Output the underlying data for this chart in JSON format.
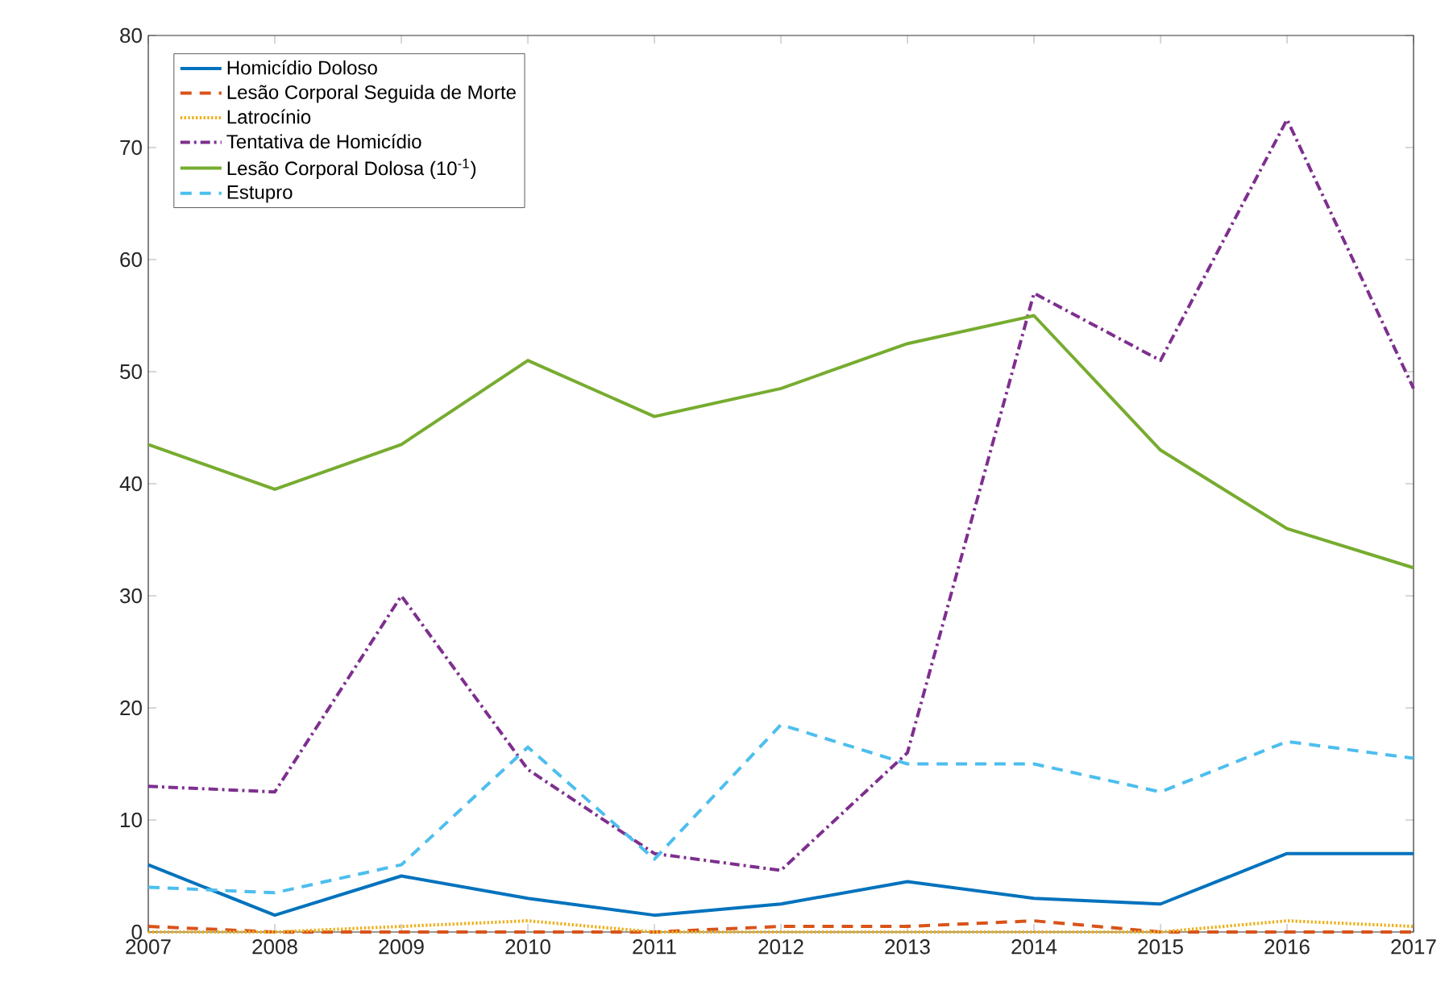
{
  "chart_data": {
    "type": "line",
    "x": [
      2007,
      2008,
      2009,
      2010,
      2011,
      2012,
      2013,
      2014,
      2015,
      2016,
      2017
    ],
    "series": [
      {
        "name": "Homicídio Doloso",
        "color": "#0072bd",
        "line_style": "solid",
        "values": [
          6,
          1.5,
          5,
          3,
          1.5,
          2.5,
          4.5,
          3,
          2.5,
          7,
          7
        ]
      },
      {
        "name": "Lesão Corporal Seguida de Morte",
        "color": "#d95319",
        "line_style": "dashed",
        "values": [
          0.5,
          0,
          0,
          0,
          0,
          0.5,
          0.5,
          1,
          0,
          0,
          0
        ]
      },
      {
        "name": "Latrocínio",
        "color": "#edb120",
        "line_style": "dotted",
        "values": [
          0,
          0,
          0.5,
          1,
          0,
          0,
          0,
          0,
          0,
          1,
          0.5
        ]
      },
      {
        "name": "Tentativa de Homicídio",
        "color": "#7e2f8e",
        "line_style": "dashdot",
        "values": [
          13,
          12.5,
          30,
          14.5,
          7,
          5.5,
          16,
          57,
          51,
          72.5,
          48.5
        ]
      },
      {
        "name": "Lesão Corporal Dolosa (10$^{-1}$)",
        "color": "#77ac30",
        "line_style": "solid",
        "values": [
          43.5,
          39.5,
          43.5,
          51,
          46,
          48.5,
          52.5,
          55,
          43,
          36,
          32.5
        ]
      },
      {
        "name": "Estupro",
        "color": "#4dbeee",
        "line_style": "dashed",
        "values": [
          4,
          3.5,
          6,
          16.5,
          6.5,
          18.5,
          15,
          15,
          12.5,
          17,
          15.5
        ]
      }
    ],
    "xlim": [
      2007,
      2017
    ],
    "xticks": [
      2007,
      2008,
      2009,
      2010,
      2011,
      2012,
      2013,
      2014,
      2015,
      2016,
      2017
    ],
    "ylim": [
      0,
      80
    ],
    "yticks": [
      0,
      10,
      20,
      30,
      40,
      50,
      60,
      70,
      80
    ],
    "grid": false,
    "legend": "top left"
  }
}
